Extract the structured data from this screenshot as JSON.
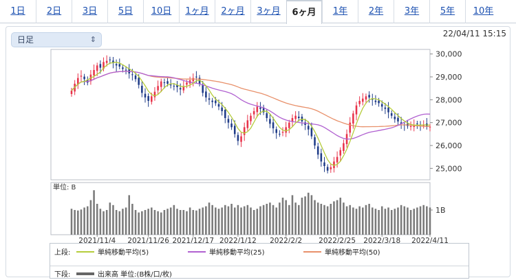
{
  "tabs": [
    {
      "label": "1日"
    },
    {
      "label": "2日"
    },
    {
      "label": "3日"
    },
    {
      "label": "5日"
    },
    {
      "label": "10日"
    },
    {
      "label": "1ヶ月"
    },
    {
      "label": "2ヶ月"
    },
    {
      "label": "3ヶ月"
    },
    {
      "label": "6ヶ月",
      "active": true
    },
    {
      "label": "1年"
    },
    {
      "label": "2年"
    },
    {
      "label": "3年"
    },
    {
      "label": "5年"
    },
    {
      "label": "10年"
    }
  ],
  "selector": {
    "value": "日足"
  },
  "timestamp": "22/04/11 15:15",
  "colors": {
    "up": "#e8334a",
    "down": "#1f3c88",
    "ma5": "#b5cc3a",
    "ma25": "#b060d0",
    "ma50": "#e8906a",
    "volume": "#7a7a7a"
  },
  "chart_data": {
    "type": "candlestick",
    "price_ylim": [
      24500,
      30200
    ],
    "price_ticks": [
      "30,000",
      "29,000",
      "28,000",
      "27,000",
      "26,000",
      "25,000"
    ],
    "price_tick_values": [
      30000,
      29000,
      28000,
      27000,
      26000,
      25000
    ],
    "volume_unit": "単位: B",
    "volume_tick": "1B",
    "volume_ylim": [
      0,
      2.0
    ],
    "volume_tick_value": 1,
    "x_labels": [
      "2021/11/4",
      "2021/11/26",
      "2021/12/17",
      "2022/1/12",
      "2022/2/2",
      "2022/2/25",
      "2022/3/18",
      "2022/4/11"
    ],
    "x_label_index": [
      8,
      24,
      38,
      52,
      67,
      83,
      97,
      112
    ],
    "close": [
      28400,
      28700,
      28950,
      29050,
      28900,
      28750,
      29100,
      29300,
      29500,
      29400,
      29650,
      29700,
      29750,
      29600,
      29500,
      29450,
      29350,
      29300,
      29150,
      29100,
      28900,
      28650,
      28300,
      28100,
      27950,
      28150,
      28350,
      28600,
      28800,
      28750,
      28700,
      28650,
      28600,
      28550,
      28450,
      28600,
      28750,
      28850,
      28950,
      29000,
      28700,
      28300,
      28100,
      28000,
      27900,
      27850,
      27700,
      27500,
      27200,
      27000,
      26800,
      26500,
      26200,
      26400,
      26800,
      27100,
      27300,
      27500,
      27700,
      27600,
      27450,
      27200,
      26950,
      26750,
      26550,
      26500,
      26600,
      26800,
      27000,
      27200,
      27300,
      27200,
      27050,
      26900,
      26700,
      26400,
      26000,
      25600,
      25300,
      25100,
      24900,
      25050,
      25300,
      25500,
      25800,
      26100,
      26500,
      27000,
      27400,
      27750,
      27950,
      28050,
      28150,
      28100,
      28000,
      27900,
      27850,
      27700,
      27600,
      27450,
      27300,
      27150,
      27050,
      26950,
      26900,
      26850,
      26850,
      26900,
      26950,
      26900,
      26900,
      26850,
      26821
    ],
    "volume": [
      1.05,
      1.0,
      0.98,
      1.02,
      1.1,
      1.15,
      1.4,
      1.8,
      1.25,
      1.05,
      0.95,
      1.0,
      1.3,
      1.2,
      1.0,
      0.95,
      1.05,
      1.1,
      1.6,
      1.25,
      1.0,
      0.9,
      0.95,
      1.0,
      1.05,
      1.1,
      1.0,
      0.95,
      0.9,
      1.0,
      1.05,
      1.1,
      1.2,
      1.05,
      1.0,
      1.0,
      0.95,
      1.1,
      1.0,
      0.98,
      1.05,
      1.1,
      1.15,
      1.3,
      1.2,
      1.1,
      1.05,
      1.1,
      1.2,
      1.15,
      1.25,
      1.1,
      1.2,
      1.1,
      1.15,
      1.2,
      1.1,
      1.0,
      1.05,
      1.15,
      1.2,
      1.25,
      1.3,
      1.2,
      1.1,
      1.3,
      1.5,
      1.4,
      1.2,
      1.6,
      1.3,
      1.2,
      1.5,
      1.55,
      1.7,
      1.6,
      1.4,
      1.3,
      1.25,
      1.2,
      1.15,
      1.25,
      1.35,
      1.4,
      1.5,
      1.3,
      1.15,
      1.2,
      1.1,
      1.05,
      1.15,
      1.1,
      1.2,
      1.25,
      1.1,
      1.05,
      1.0,
      1.15,
      1.05,
      1.1,
      1.0,
      1.05,
      1.1,
      1.2,
      1.15,
      1.1,
      1.0,
      1.05,
      1.1,
      1.15,
      1.2,
      1.15,
      1.1
    ],
    "series_legend_prefix": "上段:",
    "series": [
      {
        "name": "単純移動平均(5)",
        "key": "ma5"
      },
      {
        "name": "単純移動平均(25)",
        "key": "ma25"
      },
      {
        "name": "単純移動平均(50)",
        "key": "ma50"
      }
    ],
    "lower_legend_prefix": "下段:",
    "lower_legend_label": "出来高 単位:(B株/口/枚)"
  }
}
